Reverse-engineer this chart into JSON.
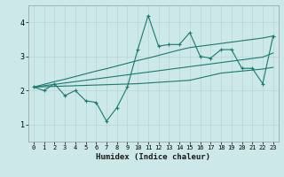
{
  "xlabel": "Humidex (Indice chaleur)",
  "x_values": [
    0,
    1,
    2,
    3,
    4,
    5,
    6,
    7,
    8,
    9,
    10,
    11,
    12,
    13,
    14,
    15,
    16,
    17,
    18,
    19,
    20,
    21,
    22,
    23
  ],
  "line_data": [
    2.1,
    2.0,
    2.2,
    1.85,
    2.0,
    1.7,
    1.65,
    1.1,
    1.5,
    2.1,
    3.2,
    4.2,
    3.3,
    3.35,
    3.35,
    3.7,
    3.0,
    2.95,
    3.2,
    3.2,
    2.65,
    2.65,
    2.2,
    3.6
  ],
  "trend_upper": [
    2.1,
    2.18,
    2.26,
    2.33,
    2.41,
    2.49,
    2.57,
    2.64,
    2.72,
    2.8,
    2.88,
    2.95,
    3.03,
    3.11,
    3.19,
    3.26,
    3.3,
    3.34,
    3.38,
    3.42,
    3.46,
    3.5,
    3.54,
    3.6
  ],
  "trend_mid": [
    2.1,
    2.14,
    2.18,
    2.22,
    2.26,
    2.3,
    2.34,
    2.38,
    2.42,
    2.46,
    2.5,
    2.54,
    2.58,
    2.62,
    2.66,
    2.7,
    2.74,
    2.78,
    2.82,
    2.86,
    2.9,
    2.94,
    2.98,
    3.1
  ],
  "trend_lower": [
    2.1,
    2.11,
    2.12,
    2.13,
    2.14,
    2.15,
    2.16,
    2.17,
    2.18,
    2.19,
    2.2,
    2.22,
    2.24,
    2.26,
    2.28,
    2.3,
    2.37,
    2.44,
    2.51,
    2.54,
    2.57,
    2.6,
    2.63,
    2.68
  ],
  "line_color": "#1a7a6e",
  "bg_color": "#cce8e8",
  "grid_color": "#b8d4d4",
  "ylim": [
    0.5,
    4.5
  ],
  "xlim": [
    -0.5,
    23.5
  ],
  "yticks": [
    1,
    2,
    3,
    4
  ],
  "xtick_labels": [
    "0",
    "1",
    "2",
    "3",
    "4",
    "5",
    "6",
    "7",
    "8",
    "9",
    "10",
    "11",
    "12",
    "13",
    "14",
    "15",
    "16",
    "17",
    "18",
    "19",
    "20",
    "21",
    "22",
    "23"
  ]
}
